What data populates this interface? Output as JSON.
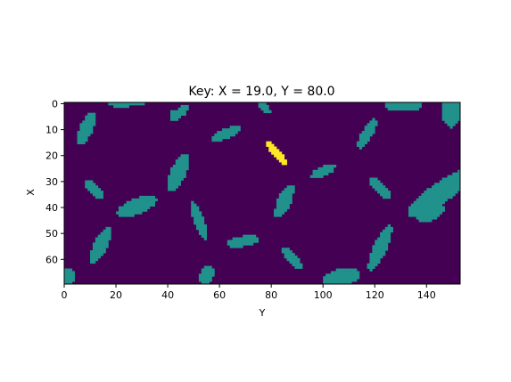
{
  "chart_data": {
    "type": "heatmap",
    "title": "Key: X = 19.0, Y = 80.0",
    "xlabel": "Y",
    "ylabel": "X",
    "xlim": [
      0,
      153
    ],
    "ylim": [
      0,
      70
    ],
    "y_axis_inverted": true,
    "grid": false,
    "x_ticks": [
      0,
      20,
      40,
      60,
      80,
      100,
      120,
      140
    ],
    "y_ticks": [
      0,
      10,
      20,
      30,
      40,
      50,
      60
    ],
    "colormap": {
      "background": "#440154",
      "obstacle": "#21918c",
      "key": "#fde725"
    },
    "key_position": {
      "X": 19.0,
      "Y": 80.0
    },
    "obstacles": [
      {
        "cy": 0,
        "cx": 22,
        "ry": 2,
        "rx": 5,
        "angle": 0
      },
      {
        "cy": 4,
        "cx": 44,
        "ry": 1,
        "rx": 4,
        "angle": 0
      },
      {
        "cy": 0,
        "cx": 28,
        "ry": 1,
        "rx": 3,
        "angle": 0
      },
      {
        "cy": 4,
        "cx": 44.5,
        "ry": 5,
        "rx": 1.5,
        "angle": 50
      },
      {
        "cy": 1.5,
        "cx": 77,
        "ry": 3.5,
        "rx": 1.5,
        "angle": -40
      },
      {
        "cy": 1,
        "cx": 131,
        "ry": 2.5,
        "rx": 7.5,
        "angle": 0
      },
      {
        "cy": 3.5,
        "cx": 149.5,
        "ry": 6,
        "rx": 3.5,
        "angle": 0
      },
      {
        "cy": 10,
        "cx": 8.5,
        "ry": 7,
        "rx": 2.5,
        "angle": 25
      },
      {
        "cy": 12,
        "cx": 62.5,
        "ry": 6,
        "rx": 2,
        "angle": 70
      },
      {
        "cy": 12,
        "cx": 117,
        "ry": 6.5,
        "rx": 2,
        "angle": 30
      },
      {
        "cy": 27,
        "cx": 44,
        "ry": 7.5,
        "rx": 3,
        "angle": 25
      },
      {
        "cy": 26.5,
        "cx": 100,
        "ry": 5,
        "rx": 2,
        "angle": 65
      },
      {
        "cy": 33.5,
        "cx": 11.5,
        "ry": 5,
        "rx": 2,
        "angle": -45
      },
      {
        "cy": 33,
        "cx": 122,
        "ry": 5,
        "rx": 2,
        "angle": -45
      },
      {
        "cy": 40,
        "cx": 28,
        "ry": 8,
        "rx": 3,
        "angle": 70
      },
      {
        "cy": 38,
        "cx": 85,
        "ry": 7,
        "rx": 2.5,
        "angle": 25
      },
      {
        "cy": 35,
        "cx": 145,
        "ry": 15,
        "rx": 4,
        "angle": 55
      },
      {
        "cy": 42,
        "cx": 141,
        "ry": 6,
        "rx": 3.5,
        "angle": 70
      },
      {
        "cy": 45.5,
        "cx": 52,
        "ry": 7.5,
        "rx": 2,
        "angle": -20
      },
      {
        "cy": 55,
        "cx": 14,
        "ry": 7.5,
        "rx": 2.5,
        "angle": 25
      },
      {
        "cy": 53.5,
        "cx": 69,
        "ry": 6.5,
        "rx": 2,
        "angle": 80
      },
      {
        "cy": 56,
        "cx": 122,
        "ry": 9.5,
        "rx": 2.5,
        "angle": 25
      },
      {
        "cy": 60,
        "cx": 88,
        "ry": 5.5,
        "rx": 2,
        "angle": -40
      },
      {
        "cy": 66.5,
        "cx": 55,
        "ry": 4,
        "rx": 2.5,
        "angle": 15
      },
      {
        "cy": 67.5,
        "cx": 107,
        "ry": 7.5,
        "rx": 3.5,
        "angle": 75
      },
      {
        "cy": 67,
        "cx": 1,
        "ry": 3,
        "rx": 3,
        "angle": 0
      }
    ],
    "key_blob": [
      {
        "cy": 19.5,
        "cx": 82,
        "ry": 5.5,
        "rx": 1.5,
        "angle": -40
      }
    ]
  }
}
